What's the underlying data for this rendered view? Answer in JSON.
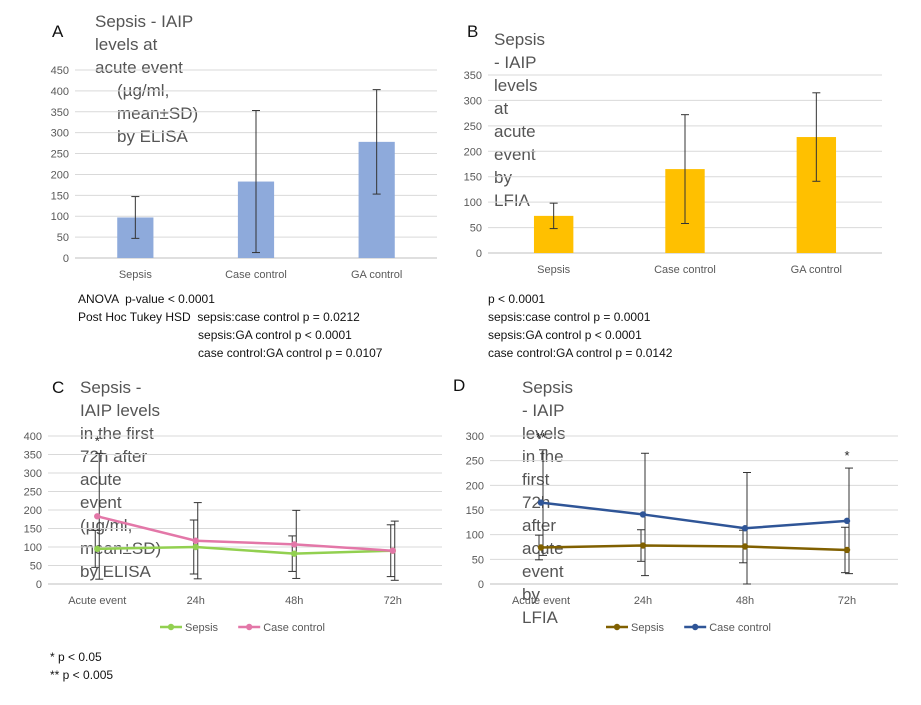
{
  "panels": [
    {
      "letter": "A",
      "title_lines": [
        "Sepsis - IAIP levels at acute event",
        "(µg/ml, mean±SD) by ELISA"
      ],
      "stats": [
        "ANOVA  p-value < 0.0001",
        "Post Hoc Tukey HSD  sepsis:case control p = 0.0212",
        "                                    sepsis:GA control p < 0.0001",
        "                                    case control:GA control p = 0.0107"
      ]
    },
    {
      "letter": "B",
      "title_lines": [
        "Sepsis - IAIP levels at acute event by LFIA"
      ],
      "stats": [
        "p < 0.0001",
        "sepsis:case control p = 0.0001",
        "sepsis:GA control p < 0.0001",
        "case control:GA control p = 0.0142"
      ]
    },
    {
      "letter": "C",
      "title_lines": [
        "Sepsis - IAIP levels in the first 72h after",
        "acute event (µg/ml, mean±SD) by ELISA"
      ]
    },
    {
      "letter": "D",
      "title_lines": [
        "Sepsis - IAIP levels in the first 72h after",
        "acute event by LFIA"
      ]
    }
  ],
  "chart_data": [
    {
      "type": "bar",
      "categories": [
        "Sepsis",
        "Case control",
        "GA control"
      ],
      "values": [
        97,
        183,
        278
      ],
      "errors": [
        50,
        170,
        125
      ],
      "ylim": [
        0,
        450
      ],
      "yticks": [
        0,
        50,
        100,
        150,
        200,
        250,
        300,
        350,
        400,
        450
      ],
      "color": "#8eaadb",
      "grid": true
    },
    {
      "type": "bar",
      "categories": [
        "Sepsis",
        "Case control",
        "GA control"
      ],
      "values": [
        73,
        165,
        228
      ],
      "errors": [
        25,
        107,
        87
      ],
      "ylim": [
        0,
        350
      ],
      "yticks": [
        0,
        50,
        100,
        150,
        200,
        250,
        300,
        350
      ],
      "color": "#ffc000",
      "grid": true
    },
    {
      "type": "line",
      "categories": [
        "Acute event",
        "24h",
        "48h",
        "72h"
      ],
      "ylim": [
        0,
        400
      ],
      "yticks": [
        0,
        50,
        100,
        150,
        200,
        250,
        300,
        350,
        400
      ],
      "series": [
        {
          "name": "Sepsis",
          "values": [
            95,
            100,
            82,
            90
          ],
          "errors": [
            50,
            73,
            48,
            70
          ],
          "color": "#92d050"
        },
        {
          "name": "Case control",
          "values": [
            183,
            117,
            107,
            90
          ],
          "errors": [
            170,
            103,
            92,
            80
          ],
          "color": "#e377a8"
        }
      ],
      "annotations": [
        {
          "category": "Acute event",
          "text": "*"
        }
      ],
      "legend": "bottom",
      "grid": true
    },
    {
      "type": "line",
      "categories": [
        "Acute event",
        "24h",
        "48h",
        "72h"
      ],
      "ylim": [
        0,
        300
      ],
      "yticks": [
        0,
        50,
        100,
        150,
        200,
        250,
        300
      ],
      "series": [
        {
          "name": "Sepsis",
          "values": [
            74,
            78,
            76,
            69
          ],
          "errors": [
            25,
            32,
            33,
            46
          ],
          "color": "#806000"
        },
        {
          "name": "Case control",
          "values": [
            165,
            141,
            113,
            128
          ],
          "errors": [
            107,
            124,
            113,
            107
          ],
          "color": "#2f5597"
        }
      ],
      "annotations": [
        {
          "category": "Acute event",
          "text": "**"
        },
        {
          "category": "72h",
          "text": "*"
        }
      ],
      "legend": "bottom",
      "grid": true
    }
  ],
  "footnotes": [
    "* p < 0.05",
    "** p < 0.005"
  ]
}
